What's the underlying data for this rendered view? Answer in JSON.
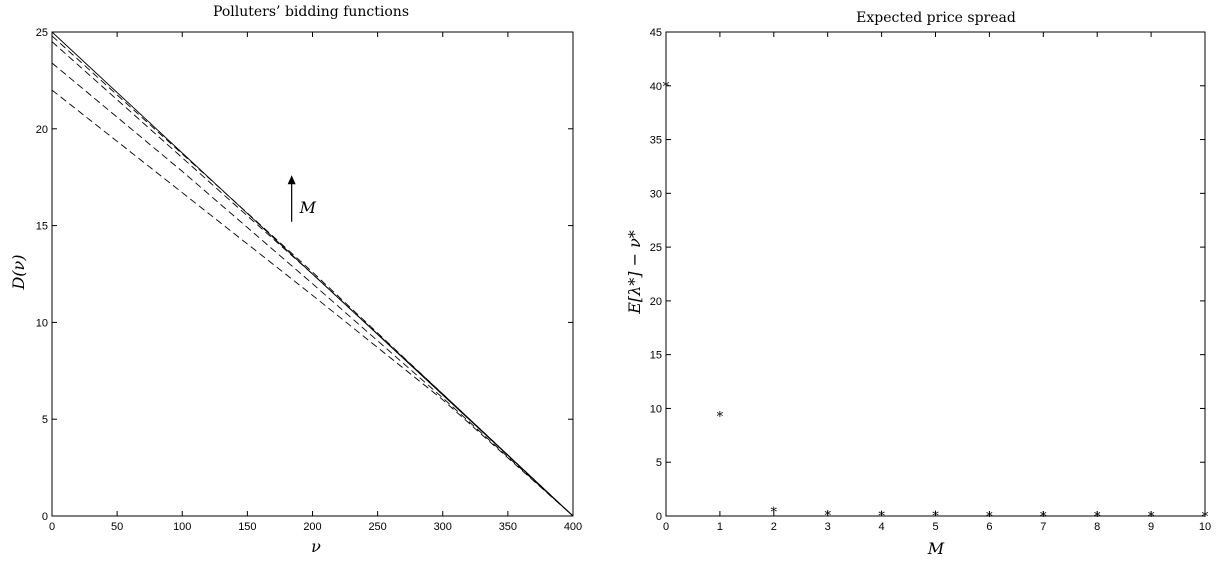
{
  "chart_data": [
    {
      "type": "line",
      "title": "Polluters’ bidding functions",
      "xlabel": "ν",
      "ylabel": "D(ν)",
      "xlim": [
        0,
        400
      ],
      "ylim": [
        0,
        25
      ],
      "xticks": [
        "0",
        "50",
        "100",
        "150",
        "200",
        "250",
        "300",
        "350",
        "400"
      ],
      "yticks": [
        "0",
        "5",
        "10",
        "15",
        "20",
        "25"
      ],
      "annotation": "M",
      "series": [
        {
          "style": "dashed",
          "x": [
            0,
            100,
            200,
            300,
            400
          ],
          "y": [
            22.0,
            16.7,
            11.4,
            6.0,
            0
          ]
        },
        {
          "style": "dashed",
          "x": [
            0,
            100,
            200,
            300,
            400
          ],
          "y": [
            23.4,
            17.8,
            12.0,
            6.1,
            0
          ]
        },
        {
          "style": "dashed",
          "x": [
            0,
            100,
            200,
            300,
            400
          ],
          "y": [
            24.5,
            18.5,
            12.5,
            6.3,
            0
          ]
        },
        {
          "style": "dashed",
          "x": [
            0,
            100,
            200,
            300,
            400
          ],
          "y": [
            24.8,
            18.7,
            12.6,
            6.3,
            0
          ]
        },
        {
          "style": "solid",
          "x": [
            0,
            100,
            200,
            300,
            400
          ],
          "y": [
            25.0,
            18.75,
            12.5,
            6.25,
            0
          ]
        }
      ],
      "grid": false
    },
    {
      "type": "scatter",
      "title": "Expected price spread",
      "xlabel": "M",
      "ylabel": "E[λ*] − ν*",
      "xlim": [
        0,
        10
      ],
      "ylim": [
        0,
        45
      ],
      "xticks": [
        "0",
        "1",
        "2",
        "3",
        "4",
        "5",
        "6",
        "7",
        "8",
        "9",
        "10"
      ],
      "yticks": [
        "0",
        "5",
        "10",
        "15",
        "20",
        "25",
        "30",
        "35",
        "40",
        "45"
      ],
      "marker": "*",
      "x": [
        0,
        1,
        2,
        3,
        4,
        5,
        6,
        7,
        8,
        9,
        10
      ],
      "y": [
        40,
        9.3,
        0.4,
        0.1,
        0.05,
        0.03,
        0.02,
        0.02,
        0.01,
        0.01,
        0.01
      ],
      "grid": false
    }
  ]
}
